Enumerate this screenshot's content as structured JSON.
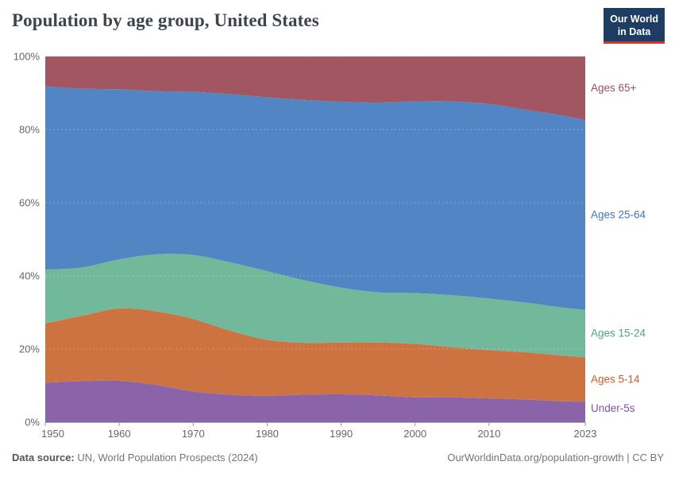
{
  "header": {
    "title": "Population by age group, United States",
    "logo": {
      "line1": "Our World",
      "line2": "in Data"
    }
  },
  "footer": {
    "source_label": "Data source:",
    "source_text": "UN, World Population Prospects (2024)",
    "link_text": "OurWorldinData.org/population-growth",
    "separator": " | ",
    "license_text": "CC BY"
  },
  "colors": {
    "logo_bg": "#1d3d63",
    "logo_stripe": "#d1332e",
    "title_text": "#3d454c",
    "axis_text": "#666666",
    "gridline": "rgba(255,255,255,0.28)",
    "baseline": "#a3a3a3",
    "tick": "#999999"
  },
  "chart_data": {
    "type": "area",
    "stacked": true,
    "normalized": true,
    "title": "Population by age group, United States",
    "xlabel": "",
    "ylabel": "",
    "unit": "%",
    "xlim": [
      1950,
      2023
    ],
    "ylim": [
      0,
      100
    ],
    "grid": "dashed-horizontal",
    "legend_position": "right-of-plot",
    "x": [
      1950,
      1955,
      1960,
      1965,
      1970,
      1975,
      1980,
      1985,
      1990,
      1995,
      2000,
      2005,
      2010,
      2015,
      2020,
      2023
    ],
    "xtick_years": [
      1950,
      1960,
      1970,
      1980,
      1990,
      2000,
      2010,
      2023
    ],
    "xtick_labels": [
      "1950",
      "1960",
      "1970",
      "1980",
      "1990",
      "2000",
      "2010",
      "2023"
    ],
    "ytick_values": [
      0,
      20,
      40,
      60,
      80,
      100
    ],
    "ytick_labels": [
      "0%",
      "20%",
      "40%",
      "60%",
      "80%",
      "100%"
    ],
    "series": [
      {
        "name": "Under-5s",
        "color": "#8a63a8",
        "label_color": "#7d53a8",
        "values": [
          10.8,
          11.2,
          11.3,
          10.2,
          8.4,
          7.5,
          7.2,
          7.5,
          7.6,
          7.3,
          6.8,
          6.8,
          6.5,
          6.2,
          5.7,
          5.6
        ]
      },
      {
        "name": "Ages 5-14",
        "color": "#cd7241",
        "label_color": "#c45f28",
        "values": [
          16.2,
          17.9,
          19.8,
          20.1,
          19.8,
          17.5,
          15.3,
          14.2,
          14.2,
          14.5,
          14.6,
          13.7,
          13.2,
          12.9,
          12.5,
          12.1
        ]
      },
      {
        "name": "Ages 15-24",
        "color": "#72b89a",
        "label_color": "#4fa380",
        "values": [
          14.7,
          13.2,
          13.4,
          15.6,
          17.5,
          18.7,
          18.8,
          17.1,
          15.0,
          13.7,
          13.9,
          14.2,
          14.1,
          13.6,
          13.1,
          13.0
        ]
      },
      {
        "name": "Ages 25-64",
        "color": "#5285c4",
        "label_color": "#3d76c2",
        "values": [
          50.1,
          48.9,
          46.5,
          44.6,
          44.6,
          46.0,
          47.5,
          49.3,
          50.8,
          51.9,
          52.4,
          53.0,
          53.2,
          52.7,
          52.5,
          51.9
        ]
      },
      {
        "name": "Ages 65+",
        "color": "#a15661",
        "label_color": "#9c4f5c",
        "values": [
          8.2,
          8.8,
          9.0,
          9.5,
          9.7,
          10.3,
          11.2,
          11.9,
          12.4,
          12.6,
          12.3,
          12.3,
          13.0,
          14.6,
          16.2,
          17.4
        ]
      }
    ]
  }
}
